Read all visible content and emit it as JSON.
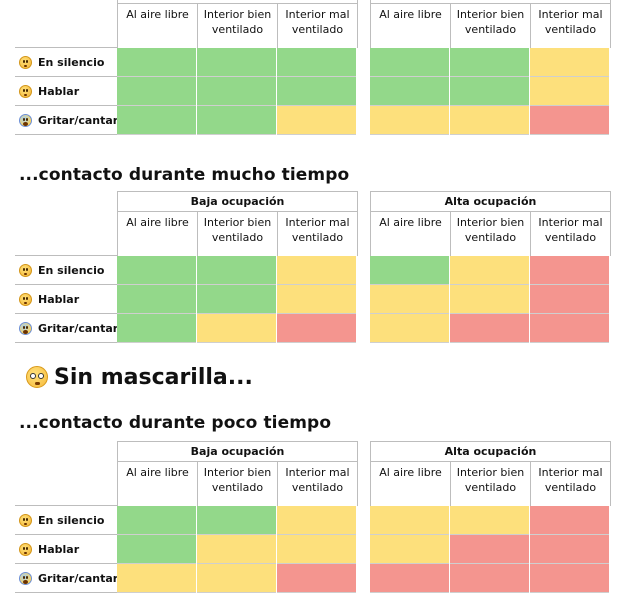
{
  "groups": [
    {
      "title": "Baja ocupación",
      "columns": [
        "Al aire libre",
        "Interior bien ventilado",
        "Interior mal ventilado"
      ]
    },
    {
      "title": "Alta ocupación",
      "columns": [
        "Al aire libre",
        "Interior bien ventilado",
        "Interior mal ventilado"
      ]
    }
  ],
  "row_labels": [
    "En silencio",
    "Hablar",
    "Gritar/cantar"
  ],
  "row_icons": [
    "neutral-face-icon",
    "talking-face-icon",
    "screaming-face-icon"
  ],
  "risk_colors": {
    "green": "#93d88a",
    "yellow": "#fde07c",
    "red": "#f4958f"
  },
  "sections": [
    {
      "heading": "",
      "rows": [
        [
          "green",
          "green",
          "green",
          "green",
          "green",
          "yellow"
        ],
        [
          "green",
          "green",
          "green",
          "green",
          "green",
          "yellow"
        ],
        [
          "green",
          "green",
          "yellow",
          "yellow",
          "yellow",
          "red"
        ]
      ]
    },
    {
      "heading": "...contacto durante mucho tiempo",
      "rows": [
        [
          "green",
          "green",
          "yellow",
          "green",
          "yellow",
          "red"
        ],
        [
          "green",
          "green",
          "yellow",
          "yellow",
          "yellow",
          "red"
        ],
        [
          "green",
          "yellow",
          "red",
          "yellow",
          "red",
          "red"
        ]
      ]
    },
    {
      "heading": "...contacto durante poco tiempo",
      "rows": [
        [
          "green",
          "green",
          "yellow",
          "yellow",
          "yellow",
          "red"
        ],
        [
          "green",
          "yellow",
          "yellow",
          "yellow",
          "red",
          "red"
        ],
        [
          "yellow",
          "yellow",
          "red",
          "red",
          "red",
          "red"
        ]
      ]
    }
  ],
  "big_heading": "Sin mascarilla..."
}
